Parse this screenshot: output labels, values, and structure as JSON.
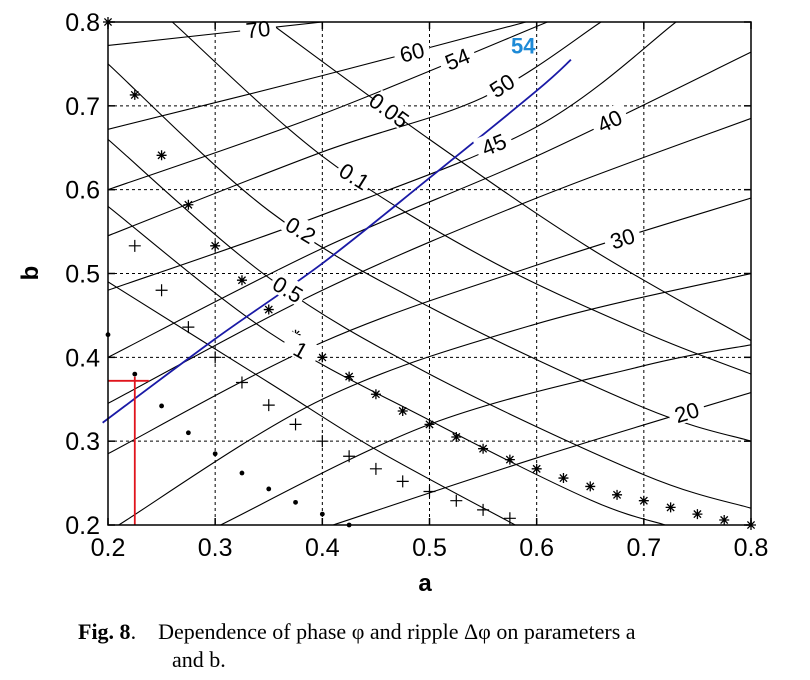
{
  "chart_data": {
    "type": "line",
    "xlabel": "a",
    "ylabel": "b",
    "xlim": [
      0.2,
      0.8
    ],
    "ylim": [
      0.2,
      0.8
    ],
    "xticks": [
      "0.2",
      "0.3",
      "0.4",
      "0.5",
      "0.6",
      "0.7",
      "0.8"
    ],
    "yticks": [
      "0.2",
      "0.3",
      "0.4",
      "0.5",
      "0.6",
      "0.7",
      "0.8"
    ],
    "grid": true,
    "phase_contours": [
      {
        "label": "70",
        "points": [
          [
            0.2,
            0.772
          ],
          [
            0.4,
            0.8
          ]
        ]
      },
      {
        "label": "60",
        "points": [
          [
            0.2,
            0.672
          ],
          [
            0.4,
            0.736
          ],
          [
            0.59,
            0.8
          ]
        ]
      },
      {
        "label": "54",
        "points": [
          [
            0.2,
            0.6
          ],
          [
            0.4,
            0.69
          ],
          [
            0.61,
            0.8
          ]
        ]
      },
      {
        "label": "50",
        "points": [
          [
            0.2,
            0.545
          ],
          [
            0.4,
            0.645
          ],
          [
            0.55,
            0.71
          ],
          [
            0.66,
            0.8
          ]
        ]
      },
      {
        "label": "45",
        "points": [
          [
            0.2,
            0.48
          ],
          [
            0.4,
            0.57
          ],
          [
            0.6,
            0.675
          ],
          [
            0.73,
            0.8
          ]
        ]
      },
      {
        "label": "40",
        "points": [
          [
            0.2,
            0.4
          ],
          [
            0.4,
            0.53
          ],
          [
            0.6,
            0.64
          ],
          [
            0.8,
            0.764
          ]
        ]
      },
      {
        "label": "",
        "points": [
          [
            0.2,
            0.345
          ],
          [
            0.4,
            0.48
          ],
          [
            0.6,
            0.59
          ],
          [
            0.8,
            0.685
          ]
        ]
      },
      {
        "label": "30",
        "points": [
          [
            0.2,
            0.285
          ],
          [
            0.4,
            0.418
          ],
          [
            0.6,
            0.51
          ],
          [
            0.8,
            0.59
          ]
        ]
      },
      {
        "label": "",
        "points": [
          [
            0.21,
            0.2
          ],
          [
            0.4,
            0.35
          ],
          [
            0.6,
            0.44
          ],
          [
            0.8,
            0.5
          ]
        ]
      },
      {
        "label": "",
        "points": [
          [
            0.305,
            0.2
          ],
          [
            0.5,
            0.32
          ],
          [
            0.7,
            0.39
          ],
          [
            0.8,
            0.415
          ]
        ]
      },
      {
        "label": "20",
        "points": [
          [
            0.41,
            0.2
          ],
          [
            0.6,
            0.28
          ],
          [
            0.8,
            0.358
          ]
        ]
      }
    ],
    "ripple_contours": [
      {
        "label": "0.05",
        "points": [
          [
            0.35,
            0.8
          ],
          [
            0.5,
            0.66
          ],
          [
            0.65,
            0.53
          ],
          [
            0.8,
            0.42
          ]
        ]
      },
      {
        "label": "0.1",
        "points": [
          [
            0.26,
            0.8
          ],
          [
            0.4,
            0.64
          ],
          [
            0.55,
            0.52
          ],
          [
            0.7,
            0.43
          ],
          [
            0.8,
            0.38
          ]
        ]
      },
      {
        "label": "0.2",
        "points": [
          [
            0.2,
            0.75
          ],
          [
            0.35,
            0.575
          ],
          [
            0.5,
            0.46
          ],
          [
            0.7,
            0.34
          ],
          [
            0.8,
            0.3
          ]
        ]
      },
      {
        "label": "0.5",
        "points": [
          [
            0.2,
            0.66
          ],
          [
            0.35,
            0.495
          ],
          [
            0.5,
            0.38
          ],
          [
            0.7,
            0.26
          ],
          [
            0.8,
            0.22
          ]
        ]
      },
      {
        "label": "1",
        "points": [
          [
            0.2,
            0.58
          ],
          [
            0.35,
            0.43
          ],
          [
            0.5,
            0.325
          ],
          [
            0.65,
            0.23
          ],
          [
            0.72,
            0.2
          ]
        ]
      },
      {
        "label": "",
        "points": [
          [
            0.2,
            0.49
          ],
          [
            0.35,
            0.37
          ],
          [
            0.45,
            0.29
          ],
          [
            0.58,
            0.2
          ]
        ]
      }
    ],
    "highlight_curve": {
      "label": "54",
      "color": "#1a1aa6",
      "label_color": "#1e8ad6",
      "points": [
        [
          0.195,
          0.322
        ],
        [
          0.3,
          0.422
        ],
        [
          0.4,
          0.512
        ],
        [
          0.5,
          0.614
        ],
        [
          0.6,
          0.718
        ],
        [
          0.632,
          0.755
        ]
      ]
    },
    "operating_point": {
      "a": 0.225,
      "b": 0.372,
      "color": "#e0141c"
    },
    "series": [
      {
        "name": "",
        "marker": "star",
        "points": [
          [
            0.2,
            0.8
          ],
          [
            0.225,
            0.713
          ],
          [
            0.25,
            0.641
          ],
          [
            0.275,
            0.582
          ],
          [
            0.3,
            0.533
          ],
          [
            0.325,
            0.492
          ],
          [
            0.35,
            0.457
          ],
          [
            0.375,
            0.427
          ],
          [
            0.4,
            0.4
          ],
          [
            0.425,
            0.377
          ],
          [
            0.45,
            0.356
          ],
          [
            0.475,
            0.336
          ],
          [
            0.5,
            0.32
          ],
          [
            0.525,
            0.305
          ],
          [
            0.55,
            0.291
          ],
          [
            0.575,
            0.278
          ],
          [
            0.6,
            0.267
          ],
          [
            0.625,
            0.256
          ],
          [
            0.65,
            0.246
          ],
          [
            0.675,
            0.236
          ],
          [
            0.7,
            0.229
          ],
          [
            0.725,
            0.221
          ],
          [
            0.75,
            0.213
          ],
          [
            0.775,
            0.206
          ],
          [
            0.8,
            0.2
          ]
        ]
      },
      {
        "name": "",
        "marker": "plus",
        "points": [
          [
            0.225,
            0.533
          ],
          [
            0.25,
            0.48
          ],
          [
            0.275,
            0.436
          ],
          [
            0.3,
            0.4
          ],
          [
            0.325,
            0.37
          ],
          [
            0.35,
            0.343
          ],
          [
            0.375,
            0.32
          ],
          [
            0.4,
            0.3
          ],
          [
            0.425,
            0.282
          ],
          [
            0.45,
            0.267
          ],
          [
            0.475,
            0.252
          ],
          [
            0.5,
            0.24
          ],
          [
            0.525,
            0.229
          ],
          [
            0.55,
            0.218
          ],
          [
            0.575,
            0.208
          ]
        ]
      },
      {
        "name": "",
        "marker": "dot",
        "points": [
          [
            0.2,
            0.427
          ],
          [
            0.225,
            0.38
          ],
          [
            0.25,
            0.342
          ],
          [
            0.275,
            0.31
          ],
          [
            0.3,
            0.285
          ],
          [
            0.325,
            0.262
          ],
          [
            0.35,
            0.243
          ],
          [
            0.375,
            0.227
          ],
          [
            0.4,
            0.213
          ],
          [
            0.425,
            0.2
          ]
        ]
      }
    ]
  },
  "caption": {
    "lead": "Fig. 8",
    "lead_punct": ".",
    "text_a": "Dependence of phase φ and ripple Δφ on parameters a",
    "text_b": "and b."
  }
}
